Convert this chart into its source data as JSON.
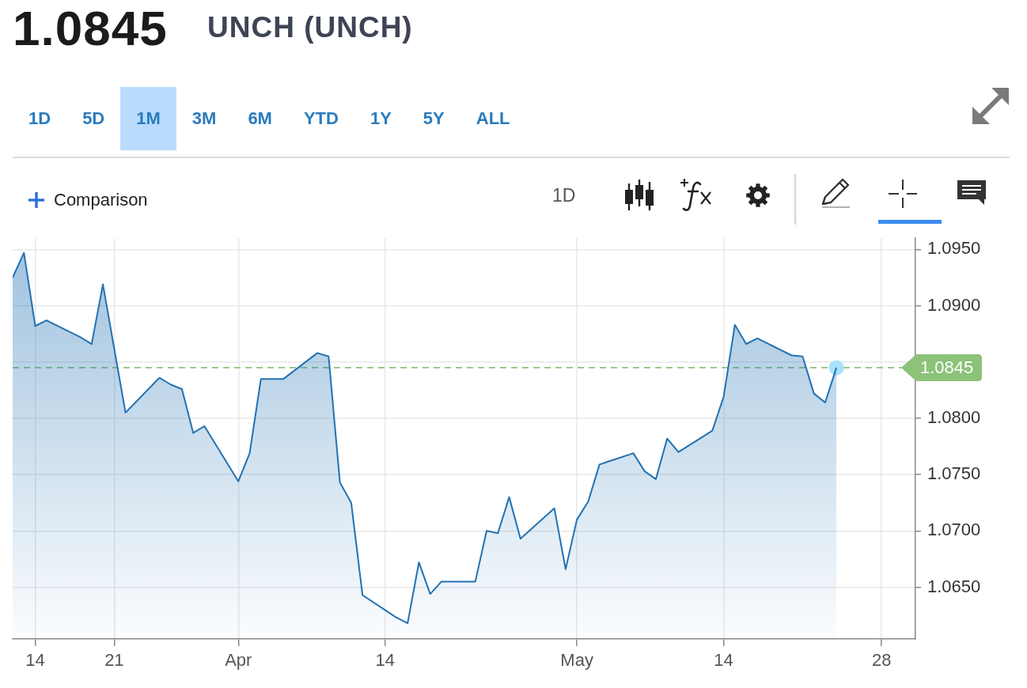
{
  "chart_data": {
    "type": "area",
    "title": "1.0845",
    "subtitle": "UNCH (UNCH)",
    "annotations": [
      "1D",
      "5D",
      "1M",
      "3M",
      "6M",
      "YTD",
      "1Y",
      "5Y",
      "ALL",
      "Comparison",
      "1D"
    ],
    "x": [
      "--03-12",
      "--03-13",
      "--03-14",
      "--03-15",
      "--03-18",
      "--03-19",
      "--03-20",
      "--03-21",
      "--03-22",
      "--03-25",
      "--03-26",
      "--03-27",
      "--03-28",
      "--03-29",
      "--04-01",
      "--04-02",
      "--04-03",
      "--04-04",
      "--04-05",
      "--04-08",
      "--04-09",
      "--04-10",
      "--04-11",
      "--04-12",
      "--04-15",
      "--04-16",
      "--04-17",
      "--04-18",
      "--04-19",
      "--04-22",
      "--04-23",
      "--04-24",
      "--04-25",
      "--04-26",
      "--04-29",
      "--04-30",
      "--05-01",
      "--05-02",
      "--05-03",
      "--05-06",
      "--05-07",
      "--05-08",
      "--05-09",
      "--05-10",
      "--05-13",
      "--05-14",
      "--05-15",
      "--05-16",
      "--05-17",
      "--05-20",
      "--05-21",
      "--05-22",
      "--05-23",
      "--05-24"
    ],
    "series": [
      {
        "color": "#2272b3",
        "values": [
          1.0925,
          1.0947,
          1.0882,
          1.0887,
          1.0872,
          1.0866,
          1.0919,
          1.0862,
          1.0805,
          1.0836,
          1.083,
          1.0826,
          1.0787,
          1.0793,
          1.0744,
          1.0769,
          1.0835,
          1.0835,
          1.0835,
          1.0858,
          1.0855,
          1.0743,
          1.0725,
          1.0643,
          1.0623,
          1.0618,
          1.0672,
          1.0644,
          1.0655,
          1.0655,
          1.07,
          1.0698,
          1.073,
          1.0693,
          1.072,
          1.0666,
          1.071,
          1.0726,
          1.0759,
          1.0769,
          1.0753,
          1.0746,
          1.0782,
          1.077,
          1.0789,
          1.0819,
          1.0883,
          1.0866,
          1.0871,
          1.0856,
          1.0855,
          1.0822,
          1.0814,
          1.0845
        ]
      },
      {
        "type": "scatter",
        "color": "#a8e2fb",
        "marker": "circle",
        "x": [
          "--05-24"
        ],
        "values": [
          1.0845
        ]
      }
    ],
    "xlim": [
      "--03-12",
      "--05-31"
    ],
    "xticks": [
      {
        "value": "--03-14",
        "label": "14"
      },
      {
        "value": "--03-21",
        "label": "21"
      },
      {
        "value": "--04-01",
        "label": "Apr"
      },
      {
        "value": "--04-14",
        "label": "14"
      },
      {
        "value": "--05-01",
        "label": "May"
      },
      {
        "value": "--05-14",
        "label": "14"
      },
      {
        "value": "--05-28",
        "label": "28"
      }
    ],
    "ylim": [
      1.0604,
      1.096
    ],
    "yticks": [
      {
        "value": 1.065,
        "label": "1.0650"
      },
      {
        "value": 1.07,
        "label": "1.0700"
      },
      {
        "value": 1.075,
        "label": "1.0750"
      },
      {
        "value": 1.08,
        "label": "1.0800"
      },
      {
        "value": 1.085,
        "label": null
      },
      {
        "value": 1.09,
        "label": "1.0900"
      },
      {
        "value": 1.095,
        "label": "1.0950"
      }
    ],
    "grid": true,
    "ref_lines": [
      {
        "axis": "y",
        "value": 1.0845,
        "label": "1.0845",
        "color": "#8cc27a",
        "line_style": "dashed"
      }
    ]
  }
}
